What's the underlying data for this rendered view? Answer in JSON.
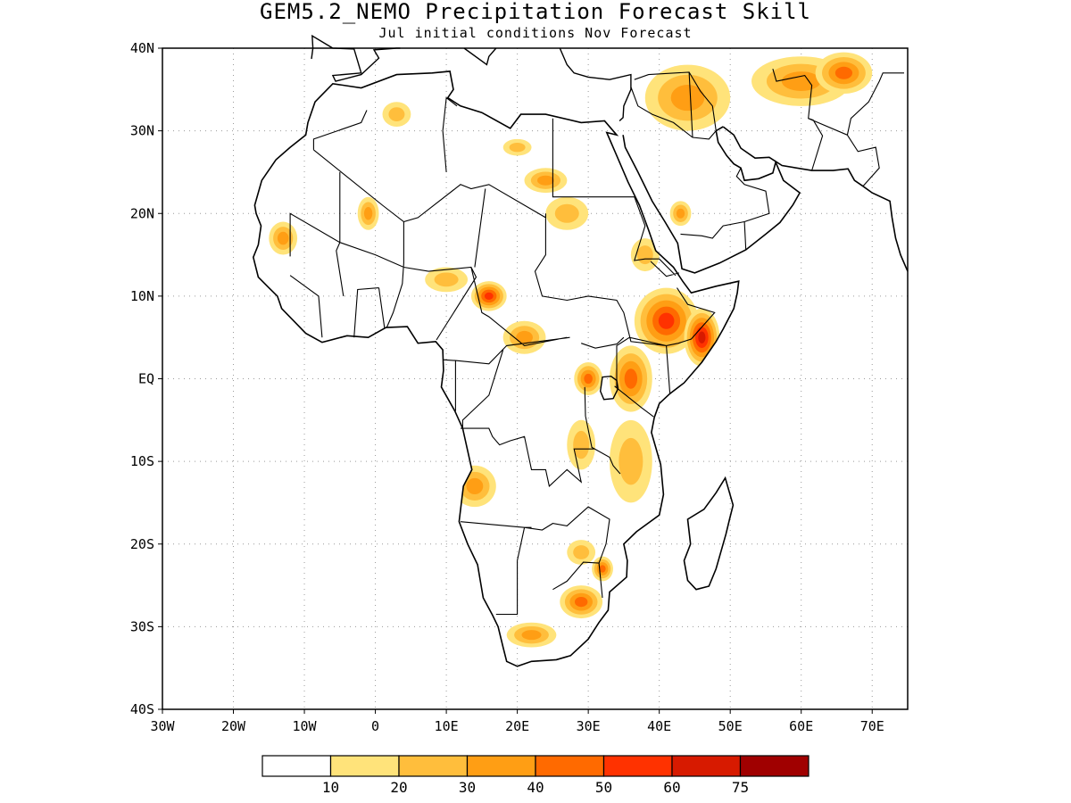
{
  "title": "GEM5.2_NEMO Precipitation Forecast Skill",
  "subtitle": "Jul initial conditions   Nov Forecast",
  "map": {
    "lon_range": [
      -30,
      75
    ],
    "lat_range": [
      -40,
      40
    ],
    "x_ticks": [
      {
        "lon": -30,
        "label": "30W"
      },
      {
        "lon": -20,
        "label": "20W"
      },
      {
        "lon": -10,
        "label": "10W"
      },
      {
        "lon": 0,
        "label": "0"
      },
      {
        "lon": 10,
        "label": "10E"
      },
      {
        "lon": 20,
        "label": "20E"
      },
      {
        "lon": 30,
        "label": "30E"
      },
      {
        "lon": 40,
        "label": "40E"
      },
      {
        "lon": 50,
        "label": "50E"
      },
      {
        "lon": 60,
        "label": "60E"
      },
      {
        "lon": 70,
        "label": "70E"
      }
    ],
    "y_ticks": [
      {
        "lat": 40,
        "label": "40N"
      },
      {
        "lat": 30,
        "label": "30N"
      },
      {
        "lat": 20,
        "label": "20N"
      },
      {
        "lat": 10,
        "label": "10N"
      },
      {
        "lat": 0,
        "label": "EQ"
      },
      {
        "lat": -10,
        "label": "10S"
      },
      {
        "lat": -20,
        "label": "20S"
      },
      {
        "lat": -30,
        "label": "30S"
      },
      {
        "lat": -40,
        "label": "40S"
      }
    ],
    "gridlines": "dotted"
  },
  "colorbar": {
    "bins": [
      {
        "color": "#ffffff"
      },
      {
        "color": "#ffe37a"
      },
      {
        "color": "#ffbe3c"
      },
      {
        "color": "#ff9e14"
      },
      {
        "color": "#ff6a00"
      },
      {
        "color": "#ff3200"
      },
      {
        "color": "#d71a00"
      },
      {
        "color": "#a00000"
      }
    ],
    "labels": [
      "10",
      "20",
      "30",
      "40",
      "50",
      "60",
      "75"
    ]
  },
  "skill_regions": [
    {
      "lon": 41,
      "lat": 7,
      "rx": 4.5,
      "ry": 4,
      "level": 5
    },
    {
      "lon": 46,
      "lat": 5,
      "rx": 2.5,
      "ry": 3.5,
      "level": 6
    },
    {
      "lon": 36,
      "lat": 0,
      "rx": 3,
      "ry": 4,
      "level": 4
    },
    {
      "lon": 30,
      "lat": 0,
      "rx": 2,
      "ry": 2,
      "level": 4
    },
    {
      "lon": 16,
      "lat": 10,
      "rx": 2.5,
      "ry": 1.8,
      "level": 5
    },
    {
      "lon": 44,
      "lat": 34,
      "rx": 6,
      "ry": 4,
      "level": 3
    },
    {
      "lon": 60,
      "lat": 36,
      "rx": 7,
      "ry": 3,
      "level": 3
    },
    {
      "lon": 66,
      "lat": 37,
      "rx": 4,
      "ry": 2.5,
      "level": 4
    },
    {
      "lon": 29,
      "lat": -27,
      "rx": 3,
      "ry": 2,
      "level": 4
    },
    {
      "lon": 22,
      "lat": -31,
      "rx": 3.5,
      "ry": 1.5,
      "level": 3
    },
    {
      "lon": 32,
      "lat": -23,
      "rx": 1.5,
      "ry": 1.5,
      "level": 4
    },
    {
      "lon": 14,
      "lat": -13,
      "rx": 3,
      "ry": 2.5,
      "level": 3
    },
    {
      "lon": 21,
      "lat": 5,
      "rx": 3,
      "ry": 2,
      "level": 3
    },
    {
      "lon": 38,
      "lat": 15,
      "rx": 2,
      "ry": 2,
      "level": 2
    },
    {
      "lon": -13,
      "lat": 17,
      "rx": 2,
      "ry": 2,
      "level": 3
    },
    {
      "lon": -1,
      "lat": 20,
      "rx": 1.5,
      "ry": 2,
      "level": 3
    },
    {
      "lon": 24,
      "lat": 24,
      "rx": 3,
      "ry": 1.5,
      "level": 3
    },
    {
      "lon": 20,
      "lat": 28,
      "rx": 2,
      "ry": 1,
      "level": 2
    },
    {
      "lon": 3,
      "lat": 32,
      "rx": 2,
      "ry": 1.5,
      "level": 2
    },
    {
      "lon": 10,
      "lat": 12,
      "rx": 3,
      "ry": 1.5,
      "level": 2
    },
    {
      "lon": 36,
      "lat": -10,
      "rx": 3,
      "ry": 5,
      "level": 2
    },
    {
      "lon": 29,
      "lat": -8,
      "rx": 2,
      "ry": 3,
      "level": 2
    },
    {
      "lon": 27,
      "lat": 20,
      "rx": 3,
      "ry": 2,
      "level": 2
    },
    {
      "lon": 43,
      "lat": 20,
      "rx": 1.5,
      "ry": 1.5,
      "level": 3
    },
    {
      "lon": 29,
      "lat": -21,
      "rx": 2,
      "ry": 1.5,
      "level": 2
    }
  ]
}
